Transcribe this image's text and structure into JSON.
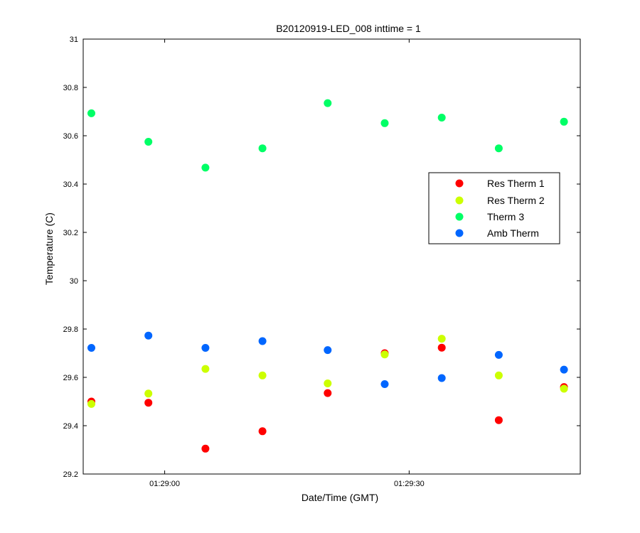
{
  "chart_data": {
    "type": "scatter",
    "title": "B20120919-LED_008 inttime = 1",
    "xlabel": "Date/Time (GMT)",
    "ylabel": "Temperature (C)",
    "x_ticks": [
      "01:29:00",
      "01:29:30"
    ],
    "y_ticks": [
      "29.2",
      "29.4",
      "29.6",
      "29.8",
      "30",
      "30.2",
      "30.4",
      "30.6",
      "30.8",
      "31"
    ],
    "xlim": [
      "01:28:50",
      "01:29:51"
    ],
    "ylim": [
      29.2,
      31
    ],
    "grid": false,
    "legend_position": "right",
    "x": [
      "01:28:51",
      "01:28:58",
      "01:29:05",
      "01:29:12",
      "01:29:20",
      "01:29:27",
      "01:29:34",
      "01:29:41",
      "01:29:49"
    ],
    "series": [
      {
        "name": "Res Therm 1",
        "color": "#ff0000",
        "values": [
          29.5,
          29.495,
          29.305,
          29.377,
          29.535,
          29.7,
          29.723,
          29.423,
          29.56
        ]
      },
      {
        "name": "Res Therm 2",
        "color": "#ccff00",
        "values": [
          29.49,
          29.533,
          29.635,
          29.608,
          29.575,
          29.695,
          29.76,
          29.608,
          29.553
        ]
      },
      {
        "name": "Therm 3",
        "color": "#00ff66",
        "values": [
          30.693,
          30.575,
          30.468,
          30.548,
          30.735,
          30.652,
          30.675,
          30.548,
          30.658
        ]
      },
      {
        "name": "Amb Therm",
        "color": "#0066ff",
        "values": [
          29.722,
          29.773,
          29.722,
          29.75,
          29.713,
          29.572,
          29.597,
          29.693,
          29.632
        ]
      }
    ]
  }
}
